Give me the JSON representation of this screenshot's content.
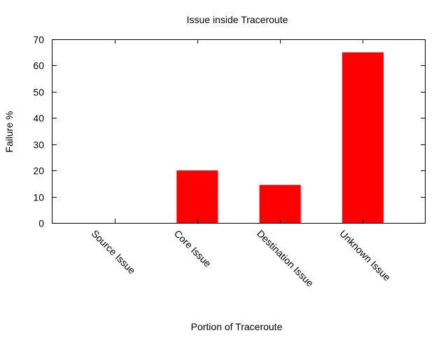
{
  "chart_data": {
    "type": "bar",
    "title": "Issue inside Traceroute",
    "xlabel": "Portion of Traceroute",
    "ylabel": "Failure %",
    "categories": [
      "Source Issue",
      "Core Issue",
      "Destination Issue",
      "Unknown Issue"
    ],
    "values": [
      0,
      20,
      14.5,
      65
    ],
    "ylim": [
      0,
      70
    ],
    "yticks": [
      0,
      10,
      20,
      30,
      40,
      50,
      60,
      70
    ],
    "grid": false,
    "legend": "none",
    "bar_color": "#ff0000"
  }
}
